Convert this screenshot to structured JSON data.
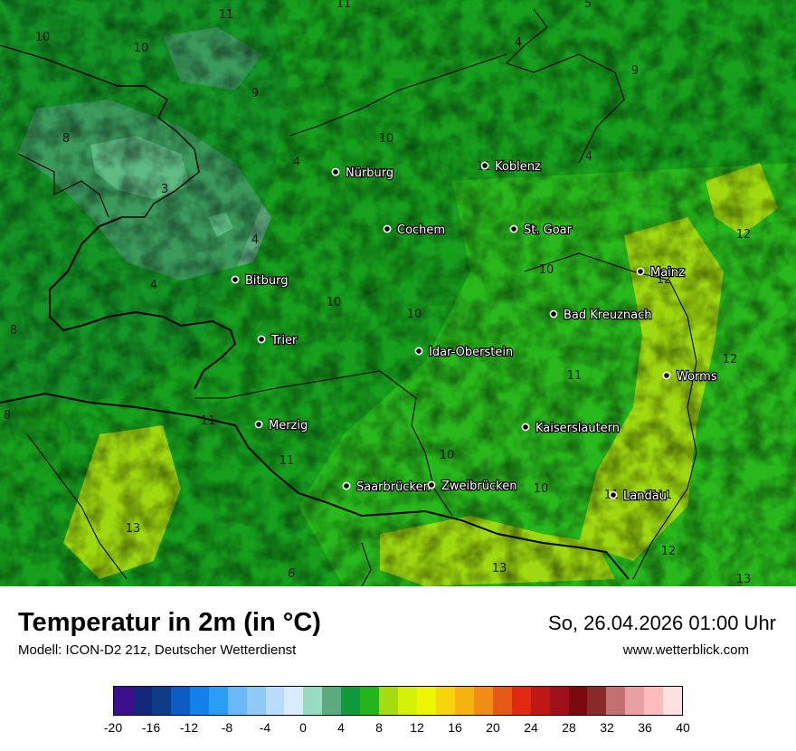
{
  "title": "Temperatur in 2m (in °C)",
  "subtitle": "Modell: ICON-D2 21z, Deutscher Wetterdienst",
  "datetime": "So, 26.04.2026 01:00 Uhr",
  "website": "www.wetterblick.com",
  "colors": {
    "deep_green": "#0f8a30",
    "mid_green": "#16a01d",
    "light_green": "#28b81c",
    "yellow_green": "#9ed80f",
    "gray_green": "#5eaa80",
    "mint": "#9ee3c6"
  },
  "cities": [
    {
      "name": "Nürburg"
    },
    {
      "name": "Koblenz"
    },
    {
      "name": "Cochem"
    },
    {
      "name": "St. Goar"
    },
    {
      "name": "Bitburg"
    },
    {
      "name": "Mainz"
    },
    {
      "name": "Bad Kreuznach"
    },
    {
      "name": "Trier"
    },
    {
      "name": "Idar-Oberstein"
    },
    {
      "name": "Worms"
    },
    {
      "name": "Merzig"
    },
    {
      "name": "Kaiserslautern"
    },
    {
      "name": "Saarbrücken"
    },
    {
      "name": "Zweibrücken"
    },
    {
      "name": "Landau"
    }
  ],
  "temperature_labels": [
    "11",
    "11",
    "5",
    "10",
    "10",
    "4",
    "9",
    "9",
    "8",
    "3",
    "10",
    "4",
    "4",
    "11",
    "4",
    "12",
    "4",
    "10",
    "12",
    "8",
    "10",
    "10",
    "8",
    "12",
    "11",
    "10",
    "11",
    "11",
    "10",
    "11",
    "11",
    "13",
    "12",
    "13",
    "6",
    "13",
    "11"
  ],
  "legend": {
    "colors": [
      "#3c0e8c",
      "#13267c",
      "#0d3c88",
      "#0b5cc4",
      "#1381ea",
      "#2c9cf4",
      "#6ab8f7",
      "#90c8f8",
      "#b8dcfb",
      "#d8ecfd",
      "#96dcc0",
      "#5eaa80",
      "#0f9a3a",
      "#24b41c",
      "#a4dc10",
      "#d5f009",
      "#eef605",
      "#f6d50c",
      "#f5b211",
      "#f18c15",
      "#e45a14",
      "#e02812",
      "#bf1616",
      "#a0101a",
      "#7a0a10",
      "#8a2a2a",
      "#c27070",
      "#e8a0a0",
      "#ffbcbc",
      "#ffe0e0"
    ],
    "ticks": [
      "-20",
      "-16",
      "-12",
      "-8",
      "-4",
      "0",
      "4",
      "8",
      "12",
      "16",
      "20",
      "24",
      "28",
      "32",
      "36",
      "40"
    ]
  }
}
